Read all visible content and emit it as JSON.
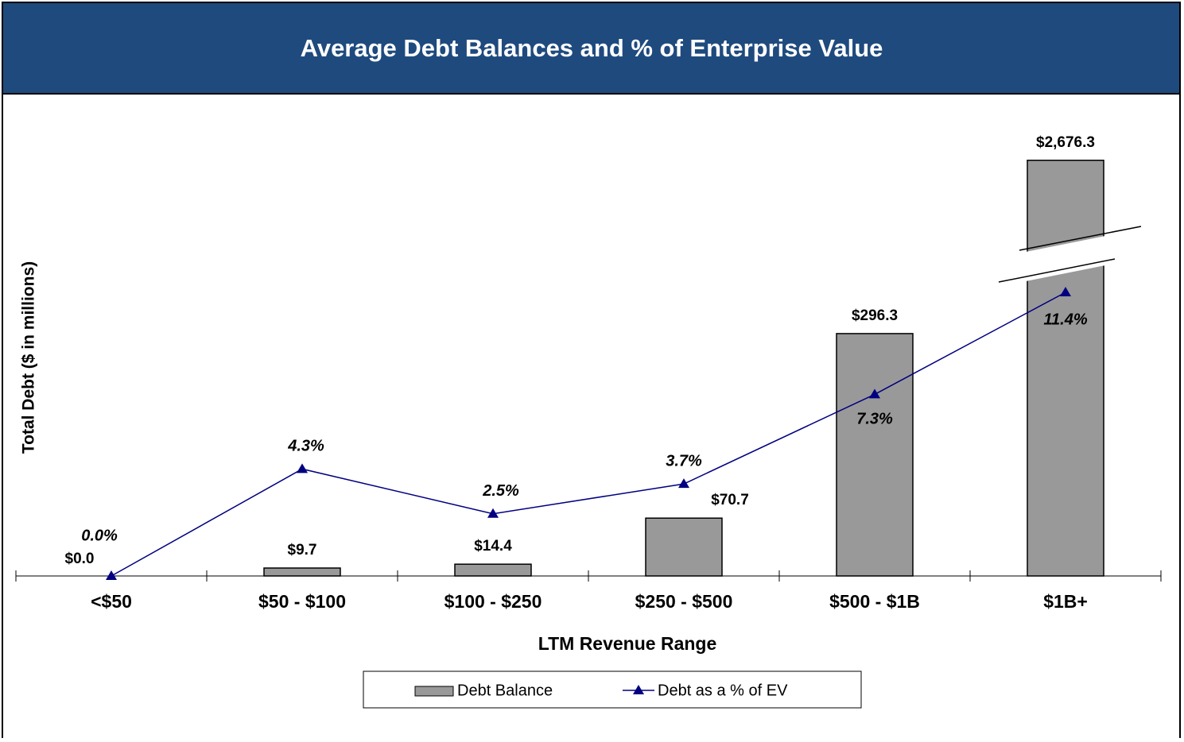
{
  "chart_data": {
    "type": "bar",
    "title": "Average Debt Balances and % of Enterprise Value",
    "x_label": "LTM Revenue Range",
    "y_label": "Total Debt ($ in millions)",
    "categories": [
      "<$50",
      "$50 - $100",
      "$100 - $250",
      "$250 - $500",
      "$500 - $1B",
      "$1B+"
    ],
    "series": [
      {
        "name": "Debt Balance",
        "type": "bar",
        "color": "#999999",
        "values": [
          0.0,
          9.7,
          14.4,
          70.7,
          296.3,
          2676.3
        ],
        "value_labels": [
          "$0.0",
          "$9.7",
          "$14.4",
          "$70.7",
          "$296.3",
          "$2,676.3"
        ]
      },
      {
        "name": "Debt as a % of EV",
        "type": "line",
        "axis": "y2",
        "color": "#000080",
        "values": [
          0.0,
          4.3,
          2.5,
          3.7,
          7.3,
          11.4
        ],
        "value_labels": [
          "0.0%",
          "4.3%",
          "2.5%",
          "3.7%",
          "7.3%",
          "11.4%"
        ]
      }
    ],
    "ylim": [
      0,
      370
    ],
    "ylim_broken": [
      2500,
      2800
    ],
    "y2lim": [
      0,
      19
    ],
    "legend": "bottom"
  }
}
